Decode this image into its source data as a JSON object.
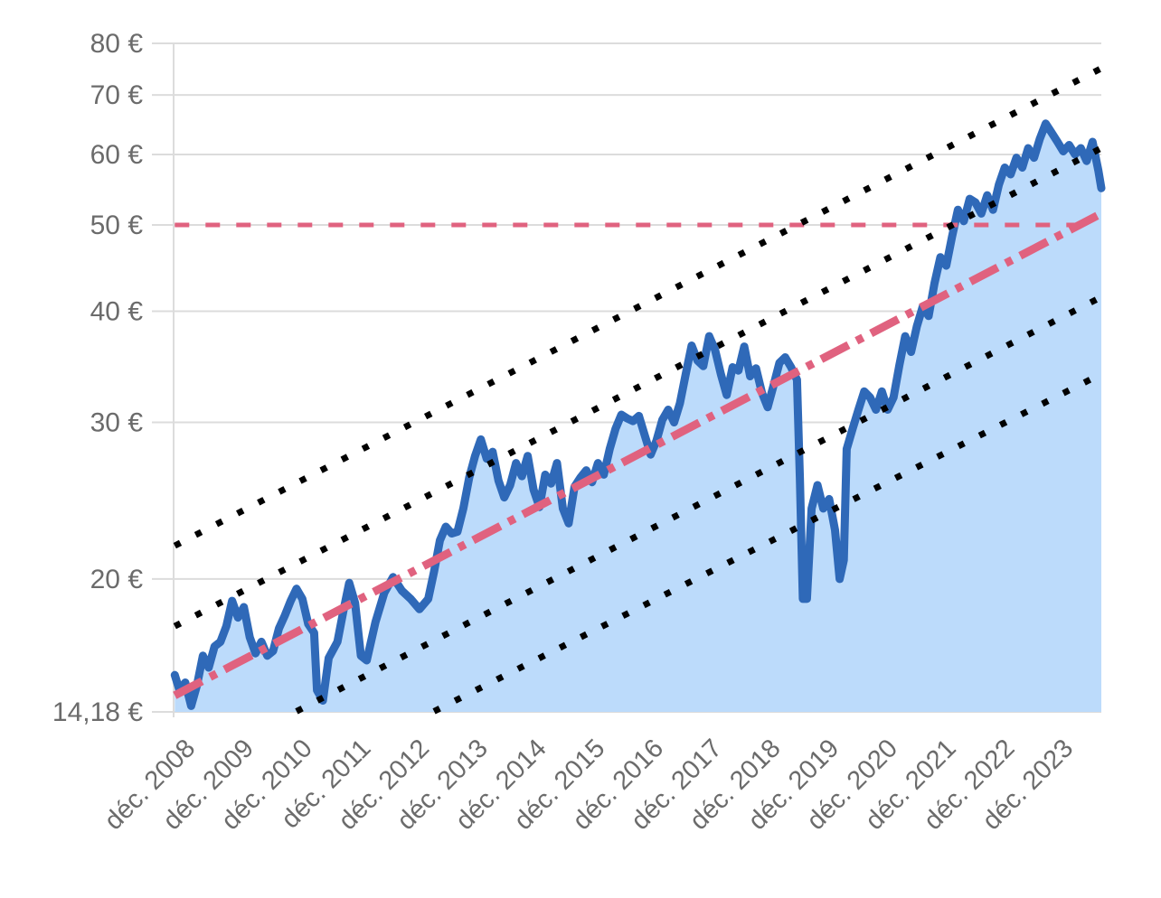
{
  "chart_data": {
    "type": "area",
    "title": "",
    "xlabel": "",
    "ylabel": "",
    "y_scale": "log",
    "ylim": [
      14.18,
      80
    ],
    "y_ticks": [
      {
        "value": 14.18,
        "label": "14,18 €"
      },
      {
        "value": 20,
        "label": "20 €"
      },
      {
        "value": 30,
        "label": "30 €"
      },
      {
        "value": 40,
        "label": "40 €"
      },
      {
        "value": 50,
        "label": "50 €"
      },
      {
        "value": 60,
        "label": "60 €"
      },
      {
        "value": 70,
        "label": "70 €"
      },
      {
        "value": 80,
        "label": "80 €"
      }
    ],
    "xlim": [
      2008.9,
      2024.75
    ],
    "x_ticks": [
      {
        "value": 2008.92,
        "label": "déc. 2008"
      },
      {
        "value": 2009.92,
        "label": "déc. 2009"
      },
      {
        "value": 2010.92,
        "label": "déc. 2010"
      },
      {
        "value": 2011.92,
        "label": "déc. 2011"
      },
      {
        "value": 2012.92,
        "label": "déc. 2012"
      },
      {
        "value": 2013.92,
        "label": "déc. 2013"
      },
      {
        "value": 2014.92,
        "label": "déc. 2014"
      },
      {
        "value": 2015.92,
        "label": "déc. 2015"
      },
      {
        "value": 2016.92,
        "label": "déc. 2016"
      },
      {
        "value": 2017.92,
        "label": "déc. 2017"
      },
      {
        "value": 2018.92,
        "label": "déc. 2018"
      },
      {
        "value": 2019.92,
        "label": "déc. 2019"
      },
      {
        "value": 2020.92,
        "label": "déc. 2020"
      },
      {
        "value": 2021.92,
        "label": "déc. 2021"
      },
      {
        "value": 2022.92,
        "label": "déc. 2022"
      },
      {
        "value": 2023.92,
        "label": "déc. 2023"
      }
    ],
    "grid": true,
    "colors": {
      "area_fill": "#bcdbfb",
      "price_line": "#2f69b8",
      "trend_line": "#e0627f",
      "reference_line": "#e0627f",
      "channel_lines": "#000000",
      "grid": "#dcdcdc"
    },
    "series": [
      {
        "kind": "price",
        "points": [
          [
            2008.92,
            15.6
          ],
          [
            2009.0,
            15.0
          ],
          [
            2009.1,
            15.3
          ],
          [
            2009.2,
            14.4
          ],
          [
            2009.3,
            15.2
          ],
          [
            2009.4,
            16.4
          ],
          [
            2009.5,
            15.9
          ],
          [
            2009.6,
            16.8
          ],
          [
            2009.7,
            17.0
          ],
          [
            2009.8,
            17.7
          ],
          [
            2009.9,
            18.9
          ],
          [
            2010.0,
            18.1
          ],
          [
            2010.1,
            18.6
          ],
          [
            2010.2,
            17.2
          ],
          [
            2010.3,
            16.5
          ],
          [
            2010.4,
            17.0
          ],
          [
            2010.5,
            16.4
          ],
          [
            2010.6,
            16.6
          ],
          [
            2010.7,
            17.6
          ],
          [
            2010.8,
            18.2
          ],
          [
            2010.9,
            18.9
          ],
          [
            2011.0,
            19.5
          ],
          [
            2011.1,
            19.0
          ],
          [
            2011.2,
            17.8
          ],
          [
            2011.3,
            17.4
          ],
          [
            2011.35,
            15.0
          ],
          [
            2011.45,
            14.6
          ],
          [
            2011.55,
            16.3
          ],
          [
            2011.7,
            17.0
          ],
          [
            2011.8,
            18.4
          ],
          [
            2011.9,
            19.8
          ],
          [
            2012.0,
            18.8
          ],
          [
            2012.1,
            16.4
          ],
          [
            2012.2,
            16.2
          ],
          [
            2012.35,
            17.9
          ],
          [
            2012.5,
            19.3
          ],
          [
            2012.65,
            20.1
          ],
          [
            2012.8,
            19.4
          ],
          [
            2012.95,
            19.0
          ],
          [
            2013.1,
            18.5
          ],
          [
            2013.25,
            19.0
          ],
          [
            2013.35,
            20.4
          ],
          [
            2013.45,
            22.1
          ],
          [
            2013.55,
            22.9
          ],
          [
            2013.65,
            22.5
          ],
          [
            2013.75,
            22.6
          ],
          [
            2013.85,
            24.0
          ],
          [
            2013.95,
            26.0
          ],
          [
            2014.05,
            27.5
          ],
          [
            2014.15,
            28.7
          ],
          [
            2014.25,
            27.3
          ],
          [
            2014.35,
            27.8
          ],
          [
            2014.45,
            25.8
          ],
          [
            2014.55,
            24.7
          ],
          [
            2014.65,
            25.5
          ],
          [
            2014.75,
            27.0
          ],
          [
            2014.85,
            26.1
          ],
          [
            2014.95,
            27.5
          ],
          [
            2015.05,
            25.2
          ],
          [
            2015.15,
            24.1
          ],
          [
            2015.25,
            26.2
          ],
          [
            2015.35,
            25.6
          ],
          [
            2015.45,
            27.0
          ],
          [
            2015.55,
            24.0
          ],
          [
            2015.65,
            23.1
          ],
          [
            2015.75,
            25.4
          ],
          [
            2015.85,
            26.0
          ],
          [
            2015.95,
            26.5
          ],
          [
            2016.05,
            25.7
          ],
          [
            2016.15,
            27.0
          ],
          [
            2016.25,
            26.2
          ],
          [
            2016.35,
            28.0
          ],
          [
            2016.45,
            29.5
          ],
          [
            2016.55,
            30.6
          ],
          [
            2016.65,
            30.3
          ],
          [
            2016.75,
            30.1
          ],
          [
            2016.85,
            30.5
          ],
          [
            2016.95,
            29.0
          ],
          [
            2017.05,
            27.6
          ],
          [
            2017.15,
            28.6
          ],
          [
            2017.25,
            30.2
          ],
          [
            2017.35,
            31.0
          ],
          [
            2017.45,
            30.0
          ],
          [
            2017.55,
            31.5
          ],
          [
            2017.65,
            34.0
          ],
          [
            2017.75,
            36.6
          ],
          [
            2017.85,
            35.2
          ],
          [
            2017.95,
            34.7
          ],
          [
            2018.05,
            37.5
          ],
          [
            2018.15,
            36.2
          ],
          [
            2018.25,
            34.0
          ],
          [
            2018.35,
            32.2
          ],
          [
            2018.45,
            34.6
          ],
          [
            2018.55,
            34.3
          ],
          [
            2018.65,
            36.5
          ],
          [
            2018.75,
            33.8
          ],
          [
            2018.85,
            34.5
          ],
          [
            2018.95,
            32.4
          ],
          [
            2019.05,
            31.2
          ],
          [
            2019.15,
            33.0
          ],
          [
            2019.25,
            35.0
          ],
          [
            2019.35,
            35.5
          ],
          [
            2019.45,
            34.6
          ],
          [
            2019.55,
            33.5
          ],
          [
            2019.6,
            26.0
          ],
          [
            2019.65,
            19.0
          ],
          [
            2019.72,
            19.0
          ],
          [
            2019.8,
            24.0
          ],
          [
            2019.9,
            25.5
          ],
          [
            2020.0,
            24.0
          ],
          [
            2020.1,
            24.6
          ],
          [
            2020.2,
            22.7
          ],
          [
            2020.28,
            20.0
          ],
          [
            2020.35,
            21.0
          ],
          [
            2020.4,
            28.0
          ],
          [
            2020.5,
            29.5
          ],
          [
            2020.6,
            31.0
          ],
          [
            2020.7,
            32.5
          ],
          [
            2020.8,
            32.0
          ],
          [
            2020.9,
            31.0
          ],
          [
            2021.0,
            32.5
          ],
          [
            2021.1,
            31.0
          ],
          [
            2021.2,
            32.0
          ],
          [
            2021.3,
            34.8
          ],
          [
            2021.4,
            37.5
          ],
          [
            2021.5,
            36.0
          ],
          [
            2021.6,
            38.5
          ],
          [
            2021.7,
            40.5
          ],
          [
            2021.8,
            39.5
          ],
          [
            2021.9,
            43.0
          ],
          [
            2022.0,
            46.0
          ],
          [
            2022.1,
            45.0
          ],
          [
            2022.2,
            48.5
          ],
          [
            2022.3,
            52.0
          ],
          [
            2022.4,
            50.5
          ],
          [
            2022.5,
            53.5
          ],
          [
            2022.6,
            53.0
          ],
          [
            2022.7,
            51.5
          ],
          [
            2022.8,
            54.0
          ],
          [
            2022.9,
            52.0
          ],
          [
            2023.0,
            55.5
          ],
          [
            2023.1,
            58.0
          ],
          [
            2023.2,
            57.0
          ],
          [
            2023.3,
            59.5
          ],
          [
            2023.4,
            58.0
          ],
          [
            2023.5,
            61.0
          ],
          [
            2023.6,
            59.5
          ],
          [
            2023.7,
            62.5
          ],
          [
            2023.8,
            65.0
          ],
          [
            2023.9,
            63.5
          ],
          [
            2024.0,
            62.0
          ],
          [
            2024.1,
            60.5
          ],
          [
            2024.2,
            61.5
          ],
          [
            2024.3,
            60.0
          ],
          [
            2024.4,
            61.0
          ],
          [
            2024.5,
            59.0
          ],
          [
            2024.6,
            62.0
          ],
          [
            2024.7,
            57.5
          ],
          [
            2024.75,
            55.0
          ]
        ]
      },
      {
        "kind": "trend",
        "points": [
          [
            2008.92,
            14.8
          ],
          [
            2024.75,
            51.5
          ]
        ]
      },
      {
        "kind": "reference",
        "points": [
          [
            2008.92,
            50
          ],
          [
            2024.35,
            50
          ]
        ]
      },
      {
        "kind": "channel",
        "points": [
          [
            2008.92,
            21.8
          ],
          [
            2024.75,
            75.0
          ]
        ]
      },
      {
        "kind": "channel",
        "points": [
          [
            2008.92,
            17.7
          ],
          [
            2024.75,
            61.0
          ]
        ]
      },
      {
        "kind": "channel",
        "points": [
          [
            2011.0,
            14.2
          ],
          [
            2024.75,
            41.5
          ]
        ]
      },
      {
        "kind": "channel",
        "points": [
          [
            2013.35,
            14.2
          ],
          [
            2024.75,
            34.0
          ]
        ]
      }
    ]
  }
}
